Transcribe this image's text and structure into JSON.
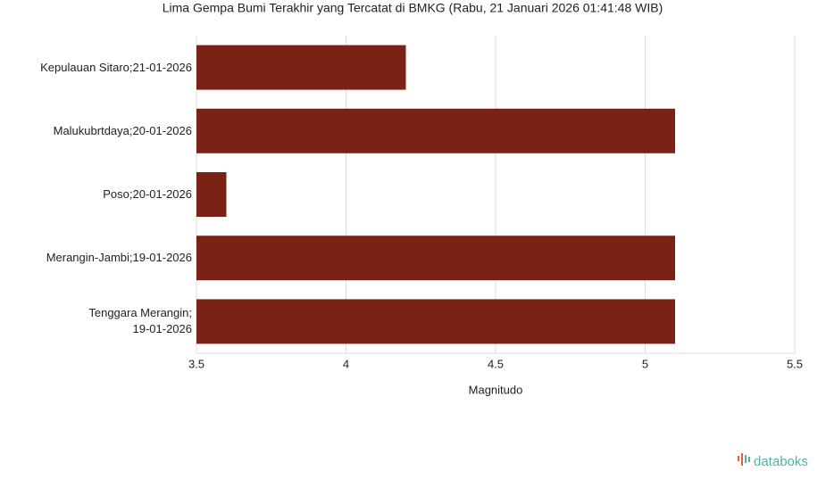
{
  "chart_data": {
    "type": "barh",
    "title": "Lima Gempa Bumi Terakhir yang Tercatat di BMKG (Rabu, 21 Januari 2026 01:41:48 WIB)",
    "x_label": "Magnitudo",
    "categories": [
      "Kepulauan Sitaro;21-01-2026",
      "Malukubrtdaya;20-01-2026",
      "Poso;20-01-2026",
      "Merangin-Jambi;19-01-2026",
      "Tenggara Merangin;\n19-01-2026"
    ],
    "values": [
      4.2,
      5.1,
      3.6,
      5.1,
      5.1
    ],
    "color": "#7a2315",
    "xlim": [
      3.5,
      5.5
    ],
    "xticks": [
      3.5,
      4,
      4.5,
      5,
      5.5
    ],
    "grid": true,
    "logo": "databoks"
  }
}
